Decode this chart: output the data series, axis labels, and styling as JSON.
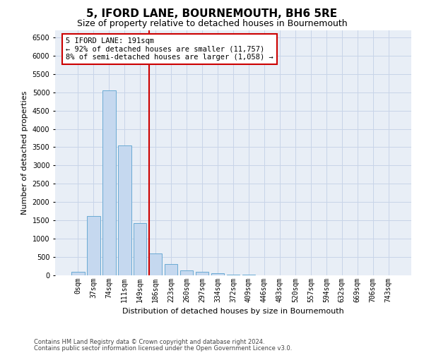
{
  "title": "5, IFORD LANE, BOURNEMOUTH, BH6 5RE",
  "subtitle": "Size of property relative to detached houses in Bournemouth",
  "xlabel": "Distribution of detached houses by size in Bournemouth",
  "ylabel": "Number of detached properties",
  "footnote1": "Contains HM Land Registry data © Crown copyright and database right 2024.",
  "footnote2": "Contains public sector information licensed under the Open Government Licence v3.0.",
  "categories": [
    "0sqm",
    "37sqm",
    "74sqm",
    "111sqm",
    "149sqm",
    "186sqm",
    "223sqm",
    "260sqm",
    "297sqm",
    "334sqm",
    "372sqm",
    "409sqm",
    "446sqm",
    "483sqm",
    "520sqm",
    "557sqm",
    "594sqm",
    "632sqm",
    "669sqm",
    "706sqm",
    "743sqm"
  ],
  "values": [
    100,
    1620,
    5050,
    3550,
    1430,
    600,
    300,
    140,
    100,
    50,
    20,
    10,
    5,
    0,
    0,
    0,
    0,
    0,
    0,
    0,
    0
  ],
  "bar_color": "#c5d8ef",
  "bar_edge_color": "#6aaad4",
  "vline_x": 4.6,
  "vline_color": "#cc0000",
  "annotation_text": "5 IFORD LANE: 191sqm\n← 92% of detached houses are smaller (11,757)\n8% of semi-detached houses are larger (1,058) →",
  "annotation_box_color": "#ffffff",
  "annotation_box_edge": "#cc0000",
  "ylim": [
    0,
    6700
  ],
  "yticks": [
    0,
    500,
    1000,
    1500,
    2000,
    2500,
    3000,
    3500,
    4000,
    4500,
    5000,
    5500,
    6000,
    6500
  ],
  "grid_color": "#c8d4e8",
  "bg_color": "#e8eef6",
  "title_fontsize": 11,
  "subtitle_fontsize": 9,
  "axis_label_fontsize": 8,
  "tick_fontsize": 7,
  "annot_fontsize": 7.5,
  "footnote_fontsize": 6
}
